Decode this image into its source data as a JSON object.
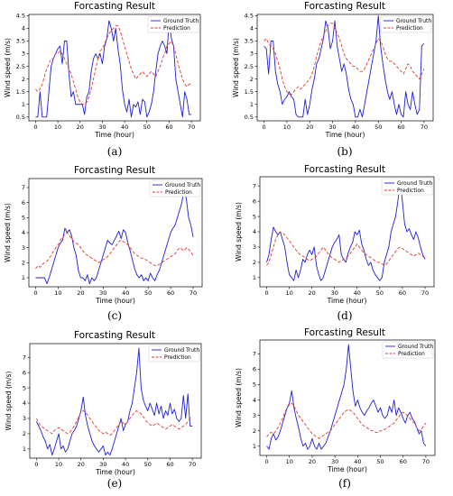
{
  "figure_labels": [
    "(a)",
    "(b)",
    "(c)",
    "(d)",
    "(e)",
    "(f)"
  ],
  "legend": {
    "truth": "Ground Truth",
    "pred": "Prediction"
  },
  "colors": {
    "truth": "#1f1fd6",
    "pred": "#e6372e"
  },
  "chart_data": [
    {
      "type": "line",
      "title": "Forcasting Result",
      "xlabel": "Time (hour)",
      "ylabel": "Wind speed (m/s)",
      "xlim": [
        -3,
        74
      ],
      "ylim": [
        0.35,
        4.55
      ],
      "xticks": [
        0,
        10,
        20,
        30,
        40,
        50,
        60,
        70
      ],
      "yticks": [
        0.5,
        1.0,
        1.5,
        2.0,
        2.5,
        3.0,
        3.5,
        4.0,
        4.5
      ],
      "series": [
        {
          "name": "Ground Truth",
          "values": [
            0.5,
            0.5,
            1.5,
            0.5,
            0.5,
            0.5,
            1.5,
            2.5,
            2.8,
            3.0,
            3.2,
            3.3,
            2.6,
            3.5,
            3.5,
            2.2,
            1.3,
            1.5,
            1.0,
            1.0,
            1.0,
            1.0,
            0.6,
            1.3,
            1.5,
            2.3,
            2.8,
            3.0,
            2.8,
            3.0,
            2.6,
            3.3,
            3.6,
            4.3,
            4.0,
            3.5,
            4.0,
            3.2,
            2.6,
            1.6,
            1.0,
            0.7,
            1.2,
            0.5,
            1.0,
            0.9,
            1.1,
            0.6,
            1.2,
            1.1,
            0.5,
            0.7,
            1.0,
            1.5,
            2.3,
            3.0,
            3.3,
            3.5,
            3.3,
            3.0,
            4.3,
            3.6,
            3.3,
            2.0,
            1.5,
            1.0,
            0.5,
            1.5,
            1.2,
            0.6,
            0.6
          ]
        },
        {
          "name": "Prediction",
          "values": [
            1.6,
            1.5,
            1.6,
            1.8,
            2.1,
            2.4,
            2.6,
            2.8,
            2.8,
            3.0,
            3.0,
            3.1,
            3.0,
            2.8,
            2.6,
            2.4,
            2.2,
            1.9,
            1.6,
            1.3,
            1.1,
            1.0,
            1.0,
            1.1,
            1.3,
            1.6,
            2.0,
            2.4,
            2.8,
            3.1,
            3.2,
            3.4,
            3.6,
            3.8,
            3.9,
            4.0,
            4.1,
            4.1,
            3.9,
            3.6,
            3.3,
            3.0,
            2.7,
            2.4,
            2.2,
            2.0,
            2.1,
            2.2,
            2.3,
            2.2,
            2.1,
            2.2,
            2.3,
            2.2,
            2.1,
            2.3,
            2.5,
            2.8,
            3.0,
            3.3,
            3.4,
            3.5,
            3.3,
            3.0,
            2.6,
            2.3,
            2.0,
            1.8,
            1.7,
            1.8,
            1.8
          ]
        }
      ]
    },
    {
      "type": "line",
      "title": "Forcasting Result",
      "xlabel": "Time (hour)",
      "ylabel": "Wind speed (m/s)",
      "xlim": [
        -3,
        74
      ],
      "ylim": [
        0.35,
        4.55
      ],
      "xticks": [
        0,
        10,
        20,
        30,
        40,
        50,
        60,
        70
      ],
      "yticks": [
        0.5,
        1.0,
        1.5,
        2.0,
        2.5,
        3.0,
        3.5,
        4.0,
        4.5
      ],
      "series": [
        {
          "name": "Ground Truth",
          "values": [
            3.3,
            3.2,
            2.2,
            3.5,
            3.5,
            2.3,
            1.8,
            1.5,
            1.0,
            1.2,
            1.3,
            1.5,
            1.3,
            1.2,
            0.6,
            0.5,
            0.5,
            0.5,
            1.2,
            0.6,
            1.0,
            1.6,
            2.0,
            2.6,
            2.8,
            3.2,
            3.6,
            4.3,
            4.0,
            3.2,
            3.5,
            4.3,
            3.3,
            2.8,
            2.3,
            2.6,
            2.2,
            1.6,
            1.2,
            1.0,
            0.5,
            0.5,
            0.8,
            0.5,
            1.0,
            1.5,
            2.0,
            2.5,
            3.0,
            3.5,
            4.5,
            3.3,
            2.6,
            2.0,
            1.5,
            1.2,
            1.5,
            1.0,
            0.6,
            1.0,
            0.6,
            0.5,
            1.5,
            1.0,
            0.8,
            1.5,
            1.0,
            0.6,
            0.8,
            3.3,
            3.4
          ]
        },
        {
          "name": "Prediction",
          "values": [
            3.5,
            3.6,
            3.4,
            3.3,
            3.2,
            3.0,
            2.7,
            2.4,
            2.0,
            1.7,
            1.5,
            1.4,
            1.4,
            1.5,
            1.6,
            1.7,
            1.6,
            1.7,
            1.8,
            1.9,
            2.0,
            2.2,
            2.5,
            2.9,
            3.2,
            3.5,
            3.7,
            3.9,
            4.1,
            4.2,
            4.2,
            4.0,
            3.8,
            3.6,
            3.3,
            3.0,
            2.8,
            2.7,
            2.6,
            2.5,
            2.5,
            2.4,
            2.3,
            2.3,
            2.4,
            2.6,
            2.8,
            3.0,
            3.2,
            3.4,
            3.6,
            3.5,
            3.3,
            3.0,
            2.8,
            2.7,
            2.7,
            2.6,
            2.5,
            2.4,
            2.3,
            2.2,
            2.4,
            2.6,
            2.5,
            2.3,
            2.2,
            2.1,
            2.0,
            2.2,
            2.4
          ]
        }
      ]
    },
    {
      "type": "line",
      "title": "Forcasting Result",
      "xlabel": "Time (hour)",
      "ylabel": "Wind speed (m/s)",
      "xlim": [
        -3,
        74
      ],
      "ylim": [
        0.4,
        7.6
      ],
      "xticks": [
        0,
        10,
        20,
        30,
        40,
        50,
        60,
        70
      ],
      "yticks": [
        1,
        2,
        3,
        4,
        5,
        6,
        7
      ],
      "series": [
        {
          "name": "Ground Truth",
          "values": [
            1.0,
            1.0,
            1.0,
            1.0,
            1.0,
            0.6,
            1.0,
            1.5,
            2.0,
            2.5,
            3.0,
            3.3,
            3.5,
            4.3,
            4.0,
            4.2,
            3.8,
            3.0,
            2.5,
            1.5,
            1.0,
            1.0,
            0.8,
            1.2,
            0.6,
            1.0,
            0.8,
            1.0,
            1.5,
            2.0,
            2.5,
            3.0,
            3.5,
            3.3,
            3.2,
            3.5,
            3.8,
            4.1,
            3.6,
            4.2,
            4.0,
            3.3,
            2.8,
            2.2,
            1.6,
            1.2,
            1.0,
            1.2,
            0.8,
            1.0,
            0.8,
            1.3,
            1.0,
            0.8,
            1.2,
            1.5,
            2.0,
            2.5,
            3.0,
            3.5,
            4.0,
            4.3,
            4.5,
            5.0,
            5.5,
            6.0,
            7.0,
            6.2,
            5.0,
            4.5,
            3.7
          ]
        },
        {
          "name": "Prediction",
          "values": [
            1.6,
            1.8,
            1.7,
            1.9,
            2.0,
            2.1,
            2.3,
            2.5,
            2.8,
            3.0,
            3.2,
            3.5,
            3.7,
            3.9,
            4.0,
            3.8,
            3.6,
            3.4,
            3.3,
            3.2,
            3.0,
            2.8,
            2.6,
            2.5,
            2.4,
            2.3,
            2.2,
            2.1,
            2.0,
            2.1,
            2.2,
            2.3,
            2.4,
            2.6,
            2.8,
            3.0,
            3.2,
            3.4,
            3.5,
            3.4,
            3.3,
            3.2,
            3.0,
            2.8,
            2.6,
            2.5,
            2.4,
            2.3,
            2.3,
            2.2,
            2.1,
            2.0,
            1.9,
            1.8,
            1.8,
            1.9,
            2.0,
            2.1,
            2.2,
            2.3,
            2.4,
            2.5,
            2.6,
            2.8,
            3.0,
            2.9,
            2.8,
            3.0,
            2.9,
            2.7,
            2.5
          ]
        }
      ]
    },
    {
      "type": "line",
      "title": "Forcasting Result",
      "xlabel": "Time (hour)",
      "ylabel": "Wind speed (m/s)",
      "xlim": [
        -3,
        74
      ],
      "ylim": [
        0.4,
        7.6
      ],
      "xticks": [
        0,
        10,
        20,
        30,
        40,
        50,
        60,
        70
      ],
      "yticks": [
        1,
        2,
        3,
        4,
        5,
        6,
        7
      ],
      "series": [
        {
          "name": "Ground Truth",
          "values": [
            2.0,
            2.5,
            3.5,
            4.3,
            4.0,
            3.8,
            4.0,
            3.5,
            3.0,
            2.0,
            1.2,
            1.0,
            0.8,
            1.5,
            1.0,
            1.5,
            2.2,
            2.0,
            2.5,
            2.8,
            2.5,
            3.0,
            1.8,
            1.2,
            0.8,
            1.0,
            1.5,
            2.0,
            2.5,
            3.0,
            3.3,
            3.5,
            3.8,
            2.5,
            2.2,
            2.0,
            2.6,
            3.0,
            3.3,
            4.0,
            3.8,
            4.1,
            3.2,
            2.8,
            2.2,
            1.8,
            2.0,
            1.5,
            1.2,
            1.0,
            0.8,
            1.0,
            2.0,
            2.5,
            3.0,
            4.0,
            4.5,
            5.0,
            6.0,
            7.3,
            6.0,
            4.5,
            4.0,
            4.2,
            3.8,
            3.5,
            4.0,
            3.6,
            3.0,
            2.5,
            2.2
          ]
        },
        {
          "name": "Prediction",
          "values": [
            1.8,
            2.0,
            2.5,
            3.0,
            3.5,
            3.8,
            4.0,
            3.9,
            3.8,
            3.6,
            3.4,
            3.2,
            3.0,
            2.8,
            2.6,
            2.5,
            2.4,
            2.3,
            2.2,
            2.1,
            2.2,
            2.3,
            2.4,
            2.6,
            2.8,
            3.0,
            2.8,
            2.6,
            2.4,
            2.3,
            2.2,
            2.1,
            2.0,
            2.1,
            2.2,
            2.3,
            2.4,
            2.6,
            2.8,
            3.0,
            3.2,
            3.0,
            2.8,
            2.6,
            2.5,
            2.4,
            2.3,
            2.2,
            2.1,
            2.0,
            2.0,
            1.9,
            1.8,
            1.9,
            2.1,
            2.3,
            2.5,
            2.7,
            2.9,
            3.0,
            2.9,
            2.8,
            2.7,
            2.6,
            2.5,
            2.4,
            2.5,
            2.6,
            2.5,
            2.4,
            2.3
          ]
        }
      ]
    },
    {
      "type": "line",
      "title": "Forcasting Result",
      "xlabel": "Time (hour)",
      "ylabel": "Wind speed (m/s)",
      "xlim": [
        -3,
        74
      ],
      "ylim": [
        0.4,
        7.9
      ],
      "xticks": [
        0,
        10,
        20,
        30,
        40,
        50,
        60,
        70
      ],
      "yticks": [
        1,
        2,
        3,
        4,
        5,
        6,
        7
      ],
      "series": [
        {
          "name": "Ground Truth",
          "values": [
            2.8,
            2.5,
            2.2,
            1.8,
            1.5,
            1.0,
            1.3,
            0.6,
            1.0,
            1.5,
            2.0,
            1.0,
            1.2,
            0.8,
            1.0,
            1.5,
            2.0,
            2.2,
            2.5,
            3.0,
            3.5,
            4.4,
            3.2,
            2.5,
            2.0,
            1.5,
            1.2,
            1.0,
            0.8,
            1.0,
            1.2,
            0.6,
            0.8,
            0.6,
            1.0,
            1.5,
            2.0,
            2.5,
            3.0,
            2.2,
            2.6,
            2.8,
            3.5,
            4.0,
            5.0,
            6.0,
            7.6,
            5.0,
            4.2,
            3.8,
            3.5,
            4.0,
            3.6,
            3.2,
            4.0,
            3.3,
            3.8,
            3.0,
            3.5,
            3.2,
            4.0,
            3.3,
            3.6,
            3.0,
            2.8,
            3.0,
            4.5,
            3.0,
            4.6,
            2.5,
            2.5
          ]
        },
        {
          "name": "Prediction",
          "values": [
            3.0,
            2.7,
            2.5,
            2.4,
            2.3,
            2.2,
            2.1,
            2.0,
            2.2,
            2.3,
            2.4,
            2.3,
            2.2,
            2.1,
            2.0,
            2.1,
            2.3,
            2.5,
            2.8,
            3.1,
            3.4,
            3.5,
            3.4,
            3.2,
            3.0,
            2.8,
            2.6,
            2.4,
            2.2,
            2.1,
            2.0,
            2.1,
            2.0,
            1.9,
            2.0,
            2.2,
            2.4,
            2.6,
            2.8,
            2.7,
            2.6,
            2.8,
            3.0,
            3.2,
            3.4,
            3.5,
            3.4,
            3.3,
            3.1,
            2.9,
            2.7,
            2.6,
            2.5,
            2.6,
            2.7,
            2.6,
            2.5,
            2.4,
            2.3,
            2.4,
            2.5,
            2.6,
            2.5,
            2.4,
            2.3,
            2.4,
            2.5,
            2.6,
            2.8,
            3.0,
            3.1
          ]
        }
      ]
    },
    {
      "type": "line",
      "title": "Forcasting Result",
      "xlabel": "Time (hour)",
      "ylabel": "Wind speed (m/s)",
      "xlim": [
        -3,
        74
      ],
      "ylim": [
        0.4,
        7.9
      ],
      "xticks": [
        0,
        10,
        20,
        30,
        40,
        50,
        60,
        70
      ],
      "yticks": [
        1,
        2,
        3,
        4,
        5,
        6,
        7
      ],
      "series": [
        {
          "name": "Ground Truth",
          "values": [
            1.0,
            0.8,
            1.5,
            1.8,
            1.4,
            1.6,
            2.0,
            2.5,
            3.0,
            3.5,
            3.8,
            4.6,
            3.5,
            2.8,
            2.2,
            1.5,
            1.0,
            1.2,
            0.8,
            1.0,
            1.5,
            1.0,
            0.8,
            1.2,
            0.8,
            1.0,
            1.2,
            1.6,
            2.0,
            2.5,
            3.0,
            3.5,
            4.0,
            4.5,
            5.0,
            6.0,
            7.6,
            6.0,
            4.5,
            3.6,
            4.0,
            3.5,
            3.2,
            3.0,
            3.3,
            3.5,
            3.8,
            4.0,
            3.6,
            3.2,
            3.5,
            3.0,
            2.8,
            3.0,
            3.6,
            3.2,
            4.0,
            3.0,
            3.5,
            3.2,
            2.8,
            2.5,
            3.0,
            3.2,
            2.8,
            2.6,
            2.2,
            1.8,
            2.0,
            1.2,
            1.0
          ]
        },
        {
          "name": "Prediction",
          "values": [
            1.6,
            1.8,
            1.9,
            1.8,
            2.0,
            2.2,
            2.5,
            2.8,
            3.2,
            3.5,
            3.7,
            3.8,
            3.6,
            3.3,
            3.0,
            2.8,
            2.6,
            2.4,
            2.2,
            2.0,
            1.8,
            1.7,
            1.6,
            1.5,
            1.6,
            1.7,
            1.8,
            1.9,
            2.0,
            2.2,
            2.4,
            2.6,
            2.8,
            3.0,
            3.2,
            3.3,
            3.4,
            3.3,
            3.2,
            3.0,
            2.8,
            2.6,
            2.4,
            2.3,
            2.2,
            2.1,
            2.0,
            2.0,
            1.9,
            1.9,
            2.0,
            2.0,
            2.1,
            2.2,
            2.3,
            2.4,
            2.5,
            2.7,
            2.9,
            3.1,
            3.2,
            3.1,
            3.0,
            2.8,
            2.6,
            2.5,
            2.2,
            2.0,
            2.1,
            2.3,
            2.5
          ]
        }
      ]
    }
  ]
}
